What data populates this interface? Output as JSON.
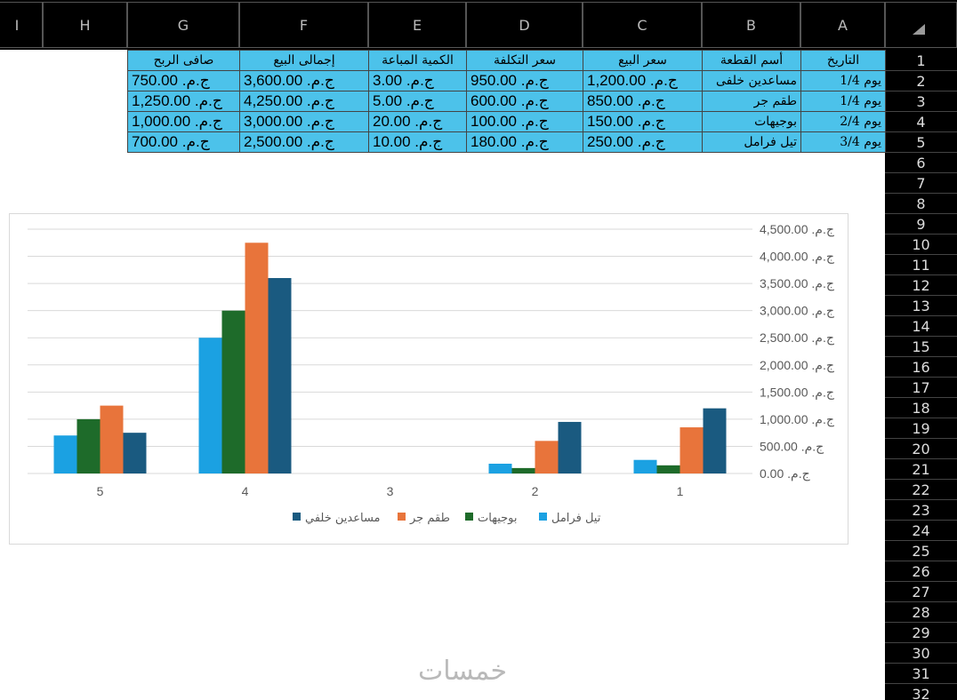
{
  "columns": [
    "I",
    "H",
    "G",
    "F",
    "E",
    "D",
    "C",
    "B",
    "A"
  ],
  "rows": [
    "1",
    "2",
    "3",
    "4",
    "5",
    "6",
    "7",
    "8",
    "9",
    "10",
    "11",
    "12",
    "13",
    "14",
    "15",
    "16",
    "17",
    "18",
    "19",
    "20",
    "21",
    "22",
    "23",
    "24",
    "25",
    "26",
    "27",
    "28",
    "29",
    "30",
    "31",
    "32"
  ],
  "table": {
    "headers": [
      "صافى الربح",
      "إجمالى البيع",
      "الكمية المباعة",
      "سعر التكلفة",
      "سعر البيع",
      "أسم القطعة",
      "التاريخ"
    ],
    "rows": [
      [
        "ج.م. 750.00",
        "ج.م. 3,600.00",
        "ج.م. 3.00",
        "ج.م. 950.00",
        "ج.م. 1,200.00",
        "مساعدين خلفى",
        "يوم 1/4"
      ],
      [
        "ج.م. 1,250.00",
        "ج.م. 4,250.00",
        "ج.م. 5.00",
        "ج.م. 600.00",
        "ج.م. 850.00",
        "طقم جر",
        "يوم 1/4"
      ],
      [
        "ج.م. 1,000.00",
        "ج.م. 3,000.00",
        "ج.م. 20.00",
        "ج.م. 100.00",
        "ج.م. 150.00",
        "بوجيهات",
        "يوم 2/4"
      ],
      [
        "ج.م. 700.00",
        "ج.م. 2,500.00",
        "ج.م. 10.00",
        "ج.م. 180.00",
        "ج.م. 250.00",
        "تيل فرامل",
        "يوم 3/4"
      ]
    ]
  },
  "chart_data": {
    "type": "bar",
    "categories": [
      "5",
      "4",
      "3",
      "2",
      "1"
    ],
    "ylim": [
      0,
      4500
    ],
    "y_ticks": [
      "ج.م. 0.00",
      "ج.م. 500.00",
      "ج.م. 1,000.00",
      "ج.م. 1,500.00",
      "ج.م. 2,000.00",
      "ج.م. 2,500.00",
      "ج.م. 3,000.00",
      "ج.م. 3,500.00",
      "ج.م. 4,000.00",
      "ج.م. 4,500.00"
    ],
    "y_tick_values": [
      0,
      500,
      1000,
      1500,
      2000,
      2500,
      3000,
      3500,
      4000,
      4500
    ],
    "axis_side": "right",
    "grid": true,
    "legend_position": "bottom",
    "series": [
      {
        "name": "تيل فرامل",
        "color": "#1ba1e2",
        "values": [
          700,
          2500,
          0,
          180,
          250
        ]
      },
      {
        "name": "بوجيهات",
        "color": "#1e6b2a",
        "values": [
          1000,
          3000,
          0,
          100,
          150
        ]
      },
      {
        "name": "طقم جر",
        "color": "#e8743b",
        "values": [
          1250,
          4250,
          0,
          600,
          850
        ]
      },
      {
        "name": "مساعدين خلفي",
        "color": "#1a5a80",
        "values": [
          750,
          3600,
          0,
          950,
          1200
        ]
      }
    ]
  },
  "watermark": "خمسات"
}
